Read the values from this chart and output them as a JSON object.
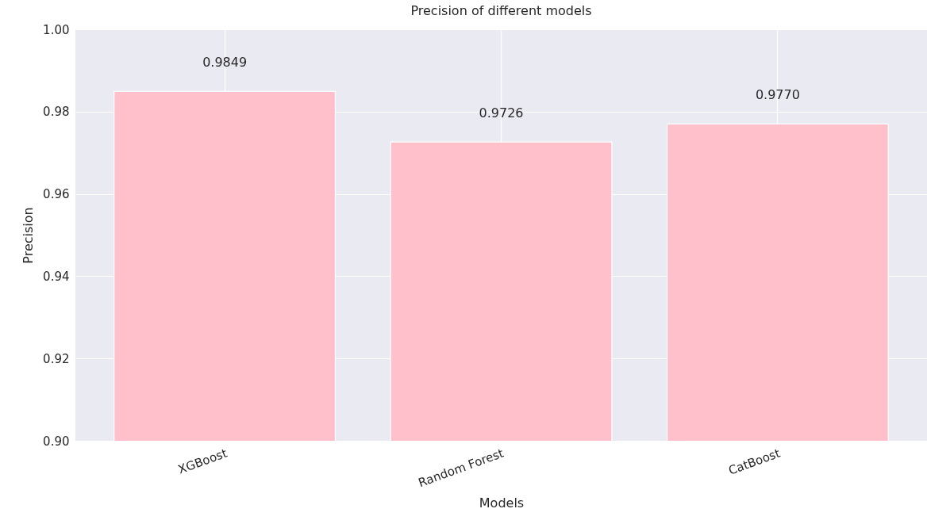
{
  "chart_data": {
    "type": "bar",
    "title": "Precision of different models",
    "xlabel": "Models",
    "ylabel": "Precision",
    "categories": [
      "XGBoost",
      "Random Forest",
      "CatBoost"
    ],
    "values": [
      0.9849,
      0.9726,
      0.977
    ],
    "value_labels": [
      "0.9849",
      "0.9726",
      "0.9770"
    ],
    "color": "#ffc0cb",
    "ylim": [
      0.9,
      1.0
    ],
    "yticks": [
      {
        "value": 0.9,
        "label": "0.90"
      },
      {
        "value": 0.92,
        "label": "0.92"
      },
      {
        "value": 0.94,
        "label": "0.94"
      },
      {
        "value": 0.96,
        "label": "0.96"
      },
      {
        "value": 0.98,
        "label": "0.98"
      },
      {
        "value": 1.0,
        "label": "1.00"
      }
    ],
    "grid": true
  }
}
